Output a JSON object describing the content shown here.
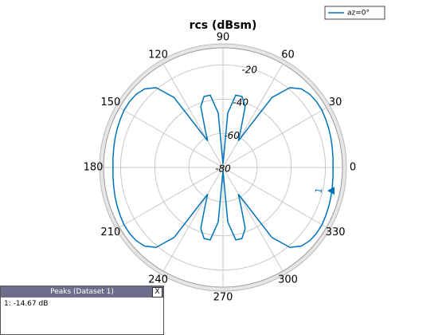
{
  "chart_data": {
    "type": "polar",
    "title": "rcs (dBsm)",
    "series": [
      {
        "name": "az=0°",
        "color": "#0072bd",
        "x": [
          0,
          5,
          10,
          15,
          20,
          25,
          30,
          35,
          40,
          45,
          50,
          55,
          60,
          65,
          70,
          75,
          80,
          85,
          90,
          95,
          100,
          105,
          110,
          115,
          120,
          125,
          130,
          135,
          140,
          145,
          150,
          155,
          160,
          165,
          170,
          175,
          180,
          185,
          190,
          195,
          200,
          205,
          210,
          215,
          220,
          225,
          230,
          235,
          240,
          245,
          250,
          255,
          260,
          265,
          270,
          275,
          280,
          285,
          290,
          295,
          300,
          305,
          310,
          315,
          320,
          325,
          330,
          335,
          340,
          345,
          350,
          355
        ],
        "values": [
          -15.5,
          -15.3,
          -15,
          -14.5,
          -14,
          -13.5,
          -13,
          -13,
          -13.5,
          -15,
          -19,
          -30,
          -62,
          -55,
          -42,
          -37,
          -37,
          -48,
          -78,
          -48,
          -37,
          -37,
          -42,
          -55,
          -62,
          -30,
          -19,
          -15,
          -13.5,
          -13,
          -13,
          -13.5,
          -14,
          -14.5,
          -15,
          -15.3,
          -15.5,
          -15.3,
          -15,
          -14.5,
          -14,
          -13.5,
          -13,
          -13,
          -13.5,
          -15,
          -19,
          -30,
          -62,
          -55,
          -42,
          -37,
          -37,
          -48,
          -78,
          -48,
          -37,
          -37,
          -42,
          -55,
          -62,
          -30,
          -19,
          -15,
          -13.5,
          -13,
          -13,
          -13.5,
          -14,
          -14.5,
          -15,
          -15.3
        ]
      }
    ],
    "xticks": [
      0,
      30,
      60,
      90,
      120,
      150,
      180,
      210,
      240,
      270,
      300,
      330
    ],
    "ylim": [
      -80,
      -10
    ],
    "yticks": [
      -80,
      -60,
      -40,
      -20
    ],
    "ytick_angle": 75,
    "peak": {
      "angle": 348,
      "value": -14.67,
      "label": "1"
    },
    "legend": "top-right"
  },
  "peaks_panel": {
    "title": "Peaks (Dataset 1)",
    "close": "X",
    "rows": [
      "1: -14.67 dB"
    ]
  }
}
